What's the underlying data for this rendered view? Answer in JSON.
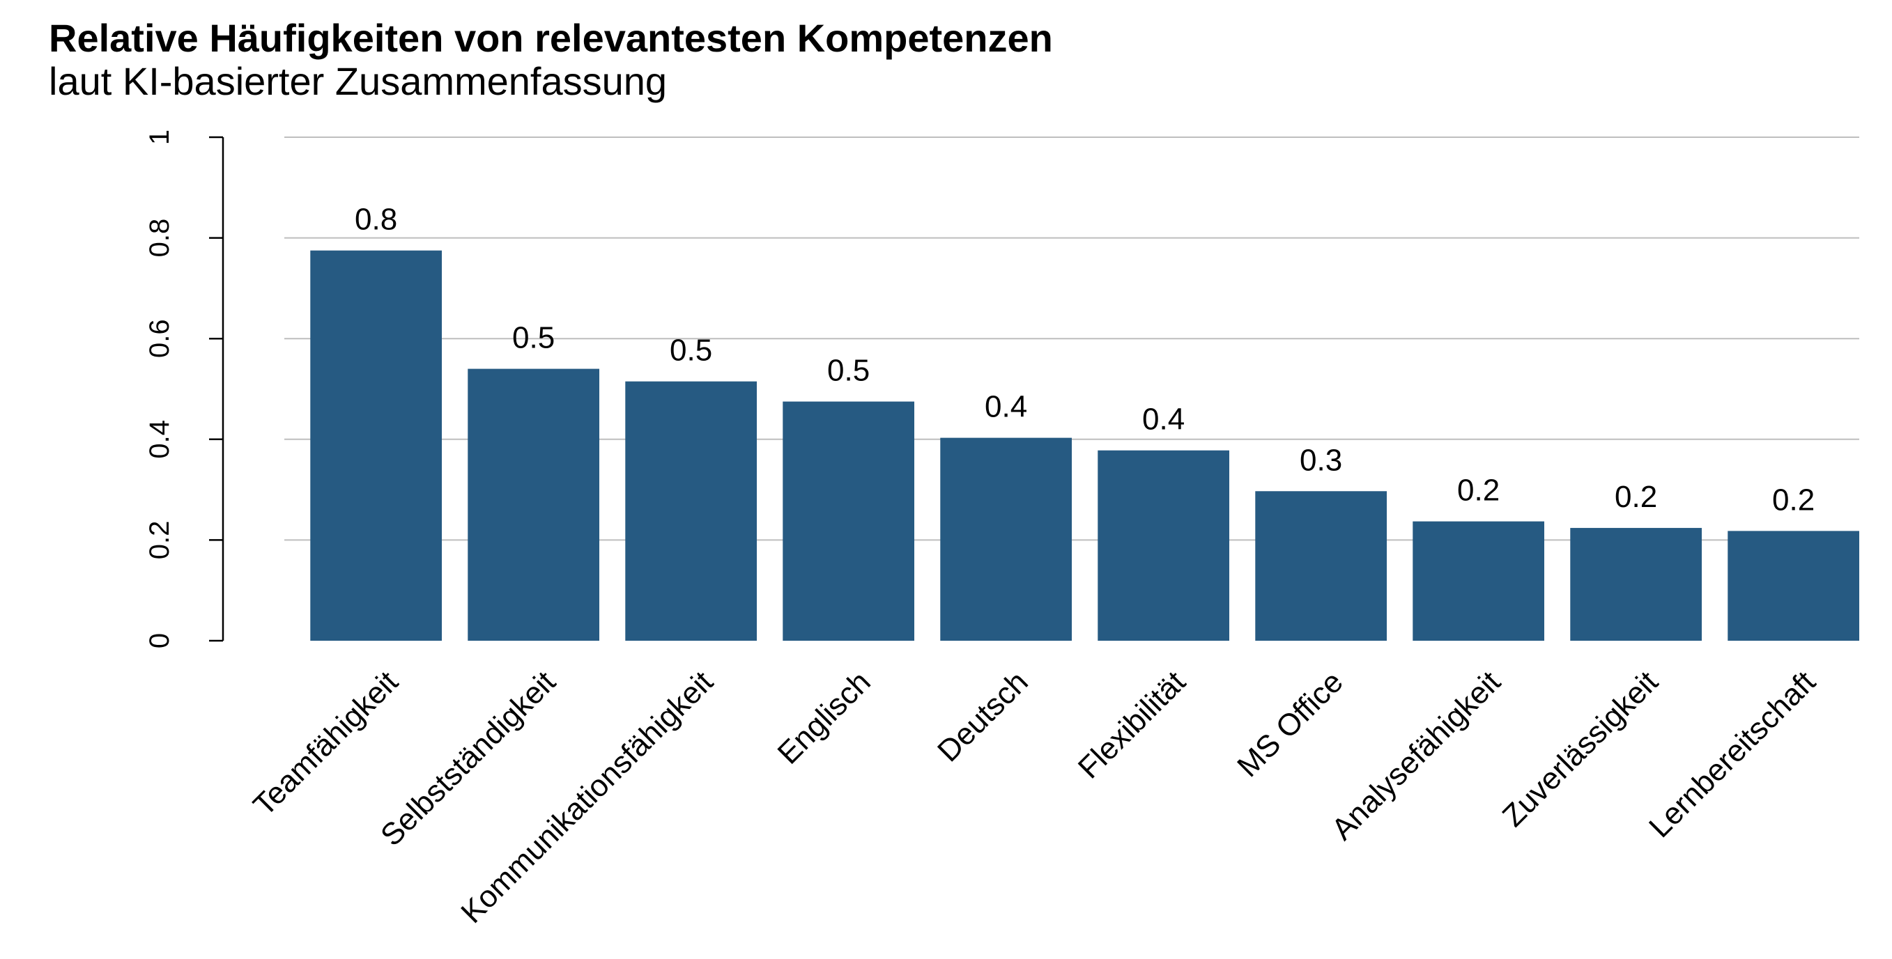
{
  "chart_data": {
    "type": "bar",
    "title": "Relative Häufigkeiten von relevantesten Kompetenzen",
    "subtitle": "laut KI-basierter Zusammenfassung",
    "xlabel": "",
    "ylabel": "",
    "categories": [
      "Teamfähigkeit",
      "Selbstständigkeit",
      "Kommunikationsfähigkeit",
      "Englisch",
      "Deutsch",
      "Flexibilität",
      "MS Office",
      "Analysefähigkeit",
      "Zuverlässigkeit",
      "Lernbereitschaft"
    ],
    "values": [
      0.775,
      0.54,
      0.515,
      0.475,
      0.403,
      0.378,
      0.297,
      0.237,
      0.224,
      0.218
    ],
    "data_labels": [
      "0.8",
      "0.5",
      "0.5",
      "0.5",
      "0.4",
      "0.4",
      "0.3",
      "0.2",
      "0.2",
      "0.2"
    ],
    "ylim": [
      0,
      1
    ],
    "yticks": [
      0,
      0.2,
      0.4,
      0.6,
      0.8,
      1
    ],
    "ytick_labels": [
      "0",
      "0.2",
      "0.4",
      "0.6",
      "0.8",
      "1"
    ],
    "grid": true,
    "legend": "none",
    "bar_color": "#265A82",
    "grid_color": "#BEBEBE"
  }
}
